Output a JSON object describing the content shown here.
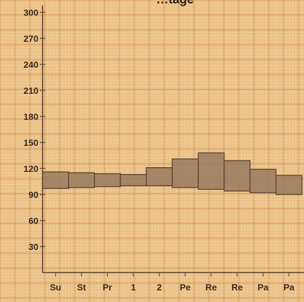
{
  "chart_data": {
    "type": "bar",
    "title": "…tage",
    "xlabel": "",
    "ylabel": "",
    "ylim": [
      0,
      300
    ],
    "yticks": [
      30,
      60,
      90,
      120,
      150,
      180,
      210,
      240,
      270,
      300
    ],
    "categories": [
      "Su",
      "St",
      "Pr",
      "1",
      "2",
      "Pe",
      "Re",
      "Re",
      "Pa",
      "Pa"
    ],
    "series": [
      {
        "low": [
          97,
          98,
          99,
          100,
          100,
          98,
          96,
          94,
          92,
          90
        ],
        "high": [
          116,
          115,
          114,
          113,
          121,
          131,
          138,
          129,
          119,
          112
        ]
      }
    ],
    "grid": true,
    "colors": {
      "paper": "#e9bf86",
      "grid_minor": "#f3d3a0",
      "grid_major": "#d9a066",
      "bar_fill": "#9a7a5f",
      "bar_stroke": "#5c4632",
      "axis": "#6a5038"
    }
  }
}
